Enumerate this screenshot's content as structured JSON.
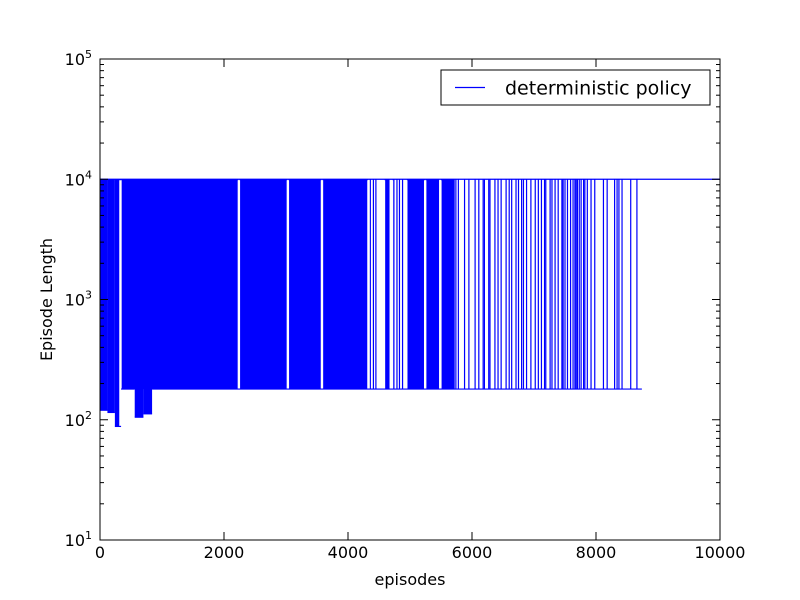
{
  "chart_data": {
    "type": "line",
    "title": "",
    "xlabel": "episodes",
    "ylabel": "Episode Length",
    "xlim": [
      0,
      10000
    ],
    "ylim": [
      10,
      100000
    ],
    "yscale": "log",
    "grid": false,
    "legend_position": "top-right",
    "x_ticks": [
      0,
      2000,
      4000,
      6000,
      8000,
      10000
    ],
    "x_tick_labels": [
      "0",
      "2000",
      "4000",
      "6000",
      "8000",
      "10000"
    ],
    "y_ticks": [
      10,
      100,
      1000,
      10000,
      100000
    ],
    "y_tick_labels": [
      {
        "base": "10",
        "exp": "1"
      },
      {
        "base": "10",
        "exp": "2"
      },
      {
        "base": "10",
        "exp": "3"
      },
      {
        "base": "10",
        "exp": "4"
      },
      {
        "base": "10",
        "exp": "5"
      }
    ],
    "series": [
      {
        "name": "deterministic policy",
        "color": "#0000ff",
        "style": "oscillating",
        "upper_value": 10000,
        "segments": [
          {
            "x": [
              0,
              120
            ],
            "low": 120
          },
          {
            "x": [
              120,
              240
            ],
            "low": 115
          },
          {
            "x": [
              240,
              340
            ],
            "low": 88
          },
          {
            "x": [
              340,
              560
            ],
            "low": 180
          },
          {
            "x": [
              560,
              700
            ],
            "low": 105
          },
          {
            "x": [
              700,
              840
            ],
            "low": 112
          },
          {
            "x": [
              840,
              8740
            ],
            "low": 180
          },
          {
            "x": [
              8740,
              10000
            ],
            "low": 10000
          }
        ],
        "dense_ranges": [
          [
            350,
            2230
          ],
          [
            2250,
            3020
          ],
          [
            3040,
            3570
          ],
          [
            3590,
            4320
          ],
          [
            4590,
            4670
          ],
          [
            4720,
            4750
          ],
          [
            4950,
            5240
          ],
          [
            5250,
            5470
          ],
          [
            5500,
            5720
          ]
        ],
        "spikes": [
          150,
          180,
          300,
          4360,
          4410,
          4450,
          4790,
          4830,
          4880,
          5560,
          5600,
          5650,
          5710,
          5740,
          5780,
          5880,
          5950,
          6050,
          6110,
          6180,
          6200,
          6270,
          6290,
          6370,
          6420,
          6470,
          6550,
          6600,
          6640,
          6710,
          6750,
          6800,
          6830,
          6880,
          6950,
          7020,
          7070,
          7120,
          7170,
          7190,
          7260,
          7290,
          7340,
          7390,
          7450,
          7470,
          7500,
          7540,
          7590,
          7630,
          7660,
          7680,
          7700,
          7730,
          7760,
          7800,
          7820,
          7860,
          7920,
          7980,
          8120,
          8180,
          8300,
          8340,
          8370,
          8420,
          8560,
          8660,
          8740
        ],
        "gaps": [
          330,
          2240,
          3030,
          3580,
          4330,
          4580,
          4710,
          4940,
          5245,
          5490
        ]
      }
    ]
  }
}
